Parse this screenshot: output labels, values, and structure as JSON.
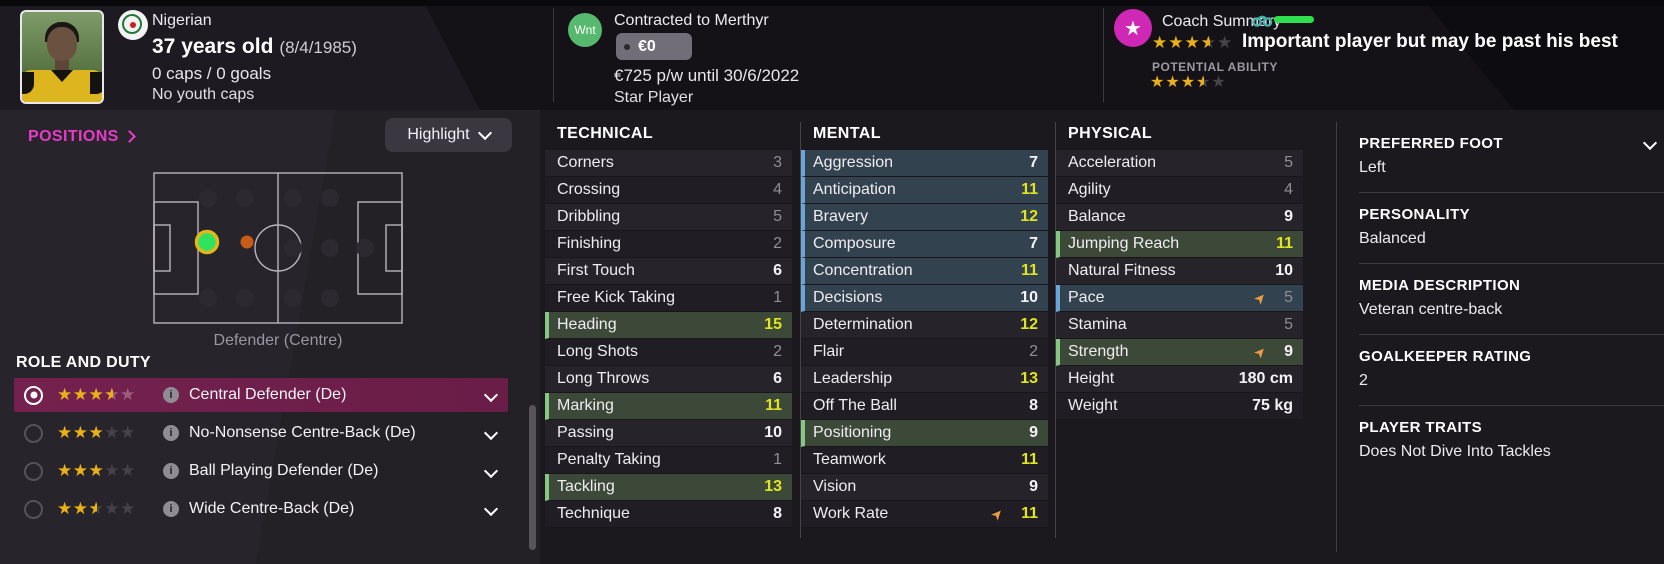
{
  "colors": {
    "accent_magenta": "#e83bc8",
    "selected_role_bg": "#701f4c",
    "highlight_green_bg": "#3c4838",
    "highlight_green_border": "#87c781",
    "highlight_blue_bg": "#33424f",
    "highlight_blue_border": "#6aa7d8",
    "attr_value_low": "#908d96",
    "attr_value_mid": "#f4f2f6",
    "attr_value_high": "#dfe51e",
    "trend_arrow_orange": "#ef9b43",
    "star_gold": "#eab117",
    "wanted_badge_green": "#57b96e",
    "coach_badge_magenta": "#cf28b4",
    "ability_bar_green": "#2ee04e",
    "position_dot_green": "#2fe35f",
    "position_dot_ring_yellow": "#e3b71c",
    "position_dot_orange": "#c75c18"
  },
  "header": {
    "player": {
      "nationality": "Nigerian",
      "age": "37 years old",
      "birthdate": "(8/4/1985)",
      "caps": "0 caps / 0 goals",
      "youth_caps": "No youth caps"
    },
    "contract": {
      "wanted_badge": "Wnt",
      "club_line": "Contracted to Merthyr",
      "value_tag": "€0",
      "wage_line": "€725 p/w until 30/6/2022",
      "squad_status": "Star Player"
    },
    "coach_summary": {
      "title": "Coach Summary",
      "current_ability_stars": 3.5,
      "assessment": "Important player but may be past his best",
      "potential_label": "POTENTIAL ABILITY",
      "potential_ability_stars": 3.5
    }
  },
  "positions": {
    "title": "POSITIONS",
    "highlight_label": "Highlight",
    "caption": "Defender (Centre)"
  },
  "roles": {
    "title": "ROLE AND DUTY",
    "items": [
      {
        "label": "Central Defender (De)",
        "stars": 3.5,
        "selected": true
      },
      {
        "label": "No-Nonsense Centre-Back (De)",
        "stars": 3,
        "selected": false
      },
      {
        "label": "Ball Playing Defender (De)",
        "stars": 3,
        "selected": false
      },
      {
        "label": "Wide Centre-Back (De)",
        "stars": 2.5,
        "selected": false
      }
    ]
  },
  "attributes": {
    "technical": {
      "title": "TECHNICAL",
      "rows": [
        {
          "label": "Corners",
          "value": 3
        },
        {
          "label": "Crossing",
          "value": 4
        },
        {
          "label": "Dribbling",
          "value": 5
        },
        {
          "label": "Finishing",
          "value": 2
        },
        {
          "label": "First Touch",
          "value": 6
        },
        {
          "label": "Free Kick Taking",
          "value": 1
        },
        {
          "label": "Heading",
          "value": 15,
          "highlight": "green"
        },
        {
          "label": "Long Shots",
          "value": 2
        },
        {
          "label": "Long Throws",
          "value": 6
        },
        {
          "label": "Marking",
          "value": 11,
          "highlight": "green"
        },
        {
          "label": "Passing",
          "value": 10
        },
        {
          "label": "Penalty Taking",
          "value": 1
        },
        {
          "label": "Tackling",
          "value": 13,
          "highlight": "green"
        },
        {
          "label": "Technique",
          "value": 8
        }
      ]
    },
    "mental": {
      "title": "MENTAL",
      "rows": [
        {
          "label": "Aggression",
          "value": 7,
          "highlight": "blue"
        },
        {
          "label": "Anticipation",
          "value": 11,
          "highlight": "blue"
        },
        {
          "label": "Bravery",
          "value": 12,
          "highlight": "blue"
        },
        {
          "label": "Composure",
          "value": 7,
          "highlight": "blue"
        },
        {
          "label": "Concentration",
          "value": 11,
          "highlight": "blue"
        },
        {
          "label": "Decisions",
          "value": 10,
          "highlight": "blue"
        },
        {
          "label": "Determination",
          "value": 12
        },
        {
          "label": "Flair",
          "value": 2
        },
        {
          "label": "Leadership",
          "value": 13
        },
        {
          "label": "Off The Ball",
          "value": 8
        },
        {
          "label": "Positioning",
          "value": 9,
          "highlight": "green"
        },
        {
          "label": "Teamwork",
          "value": 11
        },
        {
          "label": "Vision",
          "value": 9
        },
        {
          "label": "Work Rate",
          "value": 11,
          "trend": "up"
        }
      ]
    },
    "physical": {
      "title": "PHYSICAL",
      "rows": [
        {
          "label": "Acceleration",
          "value": 5
        },
        {
          "label": "Agility",
          "value": 4
        },
        {
          "label": "Balance",
          "value": 9
        },
        {
          "label": "Jumping Reach",
          "value": 11,
          "highlight": "green"
        },
        {
          "label": "Natural Fitness",
          "value": 10
        },
        {
          "label": "Pace",
          "value": 5,
          "highlight": "blue",
          "trend": "up"
        },
        {
          "label": "Stamina",
          "value": 5
        },
        {
          "label": "Strength",
          "value": 9,
          "highlight": "green",
          "trend": "up"
        },
        {
          "label": "Height",
          "value": "180 cm"
        },
        {
          "label": "Weight",
          "value": "75 kg"
        }
      ]
    }
  },
  "details": {
    "sections": [
      {
        "label": "PREFERRED FOOT",
        "value": "Left"
      },
      {
        "label": "PERSONALITY",
        "value": "Balanced"
      },
      {
        "label": "MEDIA DESCRIPTION",
        "value": "Veteran centre-back"
      },
      {
        "label": "GOALKEEPER RATING",
        "value": "2"
      },
      {
        "label": "PLAYER TRAITS",
        "value": "Does Not Dive Into Tackles"
      }
    ]
  }
}
